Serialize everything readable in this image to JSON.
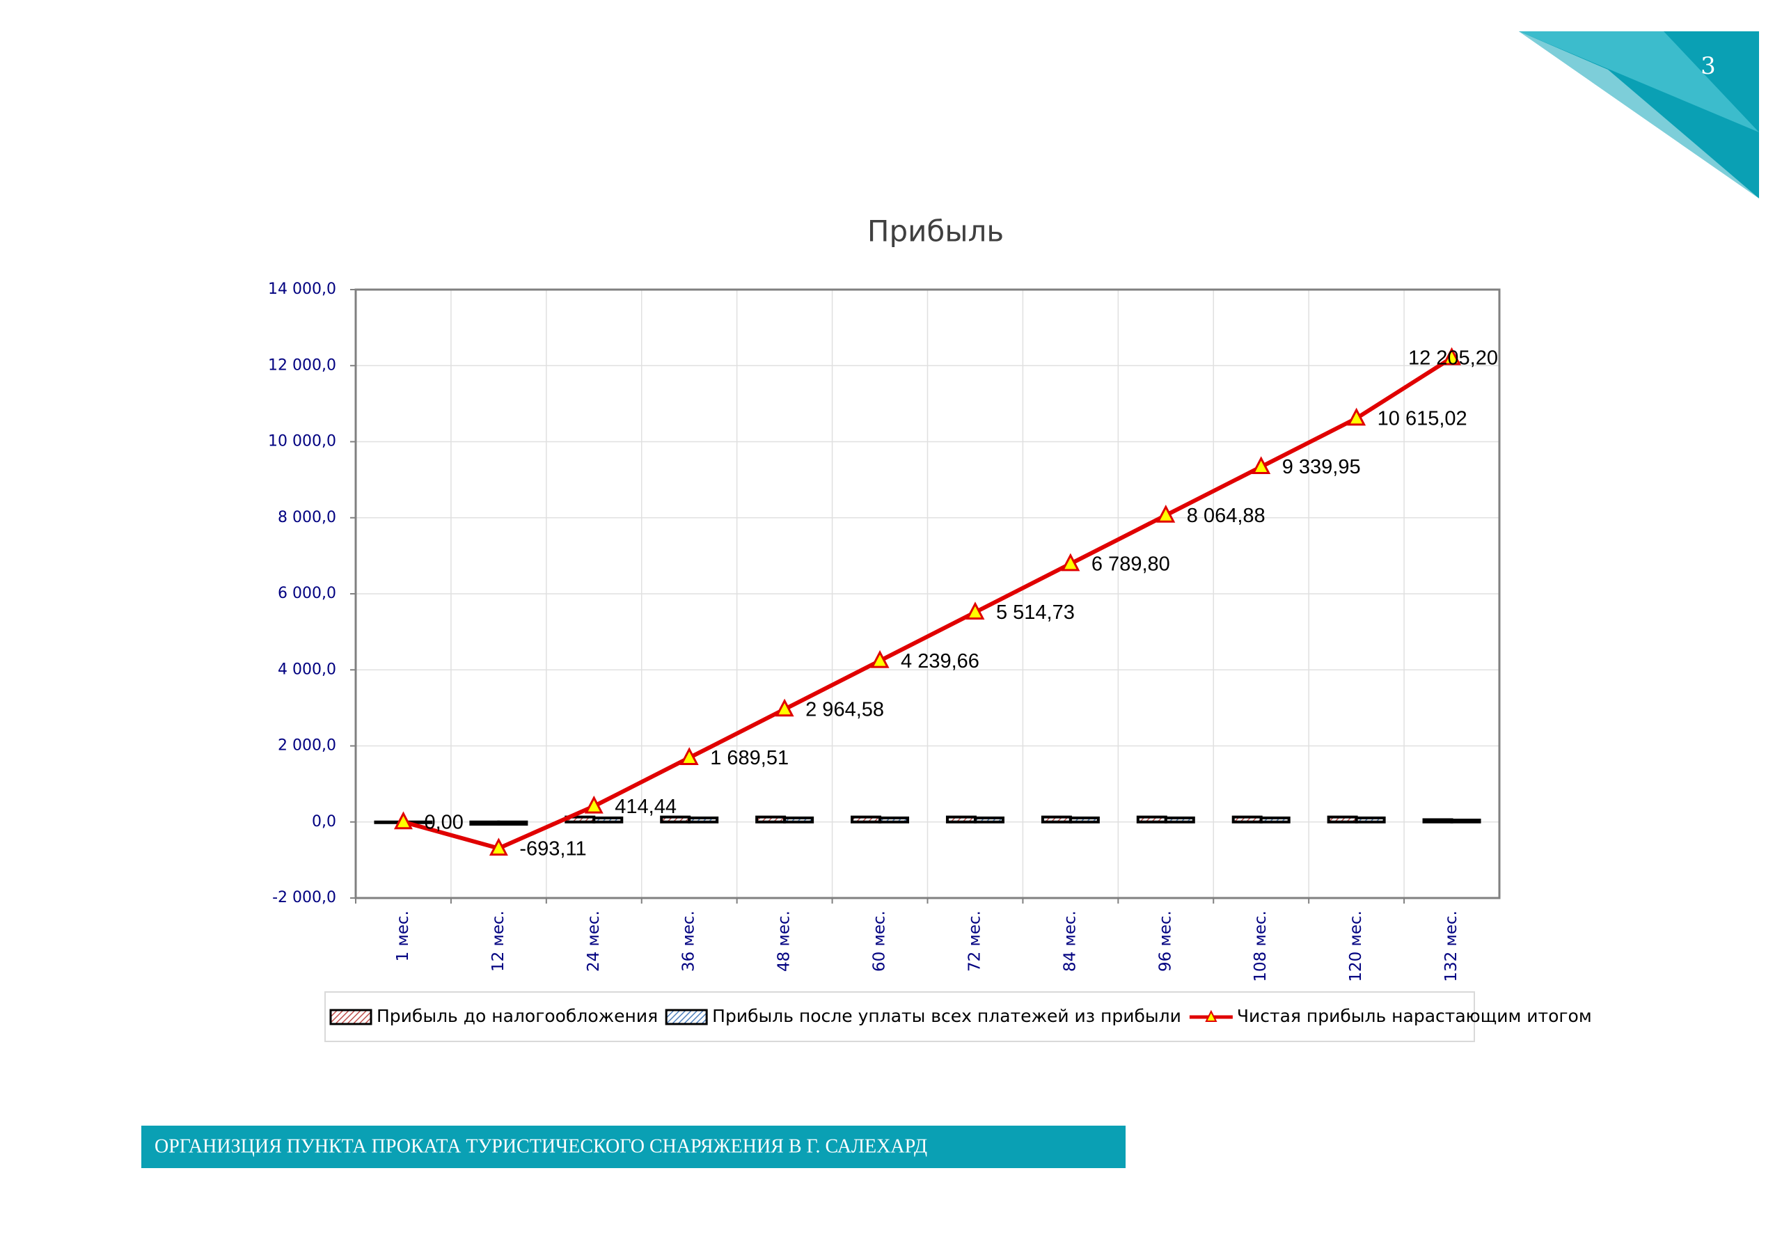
{
  "page_number": "3",
  "footer": "ОРГАНИЗЦИЯ ПУНКТА ПРОКАТА ТУРИСТИЧЕСКОГО СНАРЯЖЕНИЯ В Г. САЛЕХАРД",
  "chart_data": {
    "type": "combo",
    "title": "Прибыль",
    "categories": [
      "1 мес.",
      "12 мес.",
      "24 мес.",
      "36 мес.",
      "48 мес.",
      "60 мес.",
      "72 мес.",
      "84 мес.",
      "96 мес.",
      "108 мес.",
      "120 мес.",
      "132 мес."
    ],
    "series": [
      {
        "name": "Прибыль до налогообложения",
        "kind": "bar",
        "color": "#c0504d",
        "values": [
          0,
          -60,
          130,
          130,
          130,
          130,
          130,
          130,
          130,
          130,
          130,
          60
        ]
      },
      {
        "name": "Прибыль после уплаты всех платежей из прибыли",
        "kind": "bar",
        "color": "#4f81bd",
        "values": [
          0,
          -60,
          106,
          106,
          106,
          106,
          106,
          106,
          106,
          106,
          106,
          50
        ]
      },
      {
        "name": "Чистая прибыль нарастающим итогом",
        "kind": "line",
        "color": "#e00000",
        "marker_color": "#ffff00",
        "values": [
          0,
          -693.11,
          414.44,
          1689.51,
          2964.58,
          4239.66,
          5514.73,
          6789.8,
          8064.88,
          9339.95,
          10615.02,
          12205.2
        ],
        "value_labels": [
          "0,00",
          "-693,11",
          "414,44",
          "1 689,51",
          "2 964,58",
          "4 239,66",
          "5 514,73",
          "6 789,80",
          "8 064,88",
          "9 339,95",
          "10 615,02",
          "12 205,20"
        ]
      }
    ],
    "ylim": [
      -2000,
      14000
    ],
    "yticks": [
      {
        "value": -2000,
        "label": "-2 000,0"
      },
      {
        "value": 0,
        "label": "0,0"
      },
      {
        "value": 2000,
        "label": "2 000,0"
      },
      {
        "value": 4000,
        "label": "4 000,0"
      },
      {
        "value": 6000,
        "label": "6 000,0"
      },
      {
        "value": 8000,
        "label": "8 000,0"
      },
      {
        "value": 10000,
        "label": "10 000,0"
      },
      {
        "value": 12000,
        "label": "12 000,0"
      },
      {
        "value": 14000,
        "label": "14 000,0"
      }
    ],
    "grid": true,
    "legend": "bottom"
  }
}
